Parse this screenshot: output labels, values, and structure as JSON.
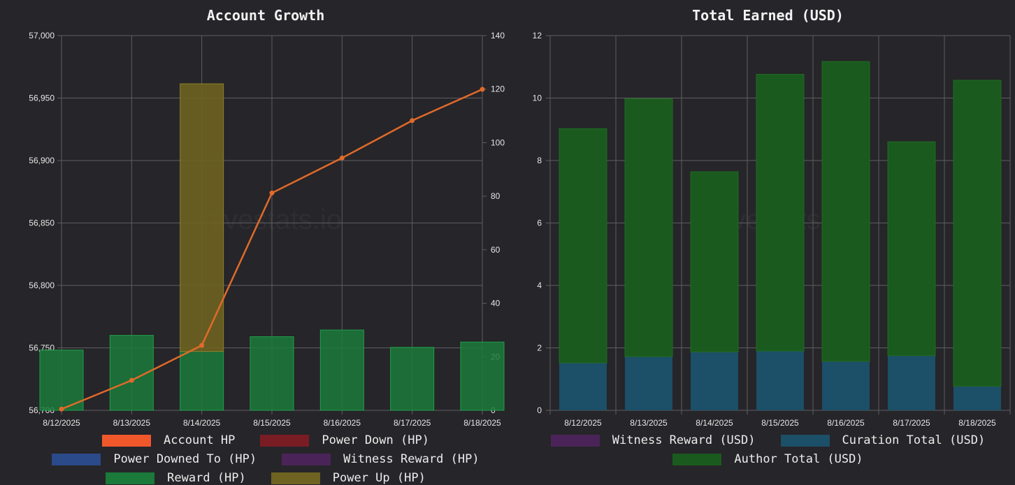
{
  "chart_data": [
    {
      "type": "bar+line",
      "title": "Account Growth",
      "categories": [
        "8/12/2025",
        "8/13/2025",
        "8/14/2025",
        "8/15/2025",
        "8/16/2025",
        "8/17/2025",
        "8/18/2025"
      ],
      "y_left": {
        "min": 56700,
        "max": 57000,
        "ticks": [
          "56,700",
          "56,750",
          "56,800",
          "56,850",
          "56,900",
          "56,950",
          "57,000"
        ]
      },
      "y_right": {
        "min": 0,
        "max": 140,
        "ticks": [
          "0",
          "20",
          "40",
          "60",
          "80",
          "100",
          "120",
          "140"
        ]
      },
      "series": [
        {
          "name": "Account HP",
          "type": "line",
          "axis": "left",
          "color": "#e06a2a",
          "values": [
            56701,
            56724,
            56752,
            56874,
            56902,
            56932,
            56957
          ]
        },
        {
          "name": "Power Down (HP)",
          "type": "bar",
          "axis": "right",
          "color": "#7a1c24",
          "values": [
            0,
            0,
            0,
            0,
            0,
            0,
            0
          ]
        },
        {
          "name": "Power Downed To (HP)",
          "type": "bar",
          "axis": "right",
          "color": "#2a4a8a",
          "values": [
            0,
            0,
            0,
            0,
            0,
            0,
            0
          ]
        },
        {
          "name": "Witness Reward (HP)",
          "type": "bar",
          "axis": "right",
          "color": "#4a2458",
          "values": [
            0,
            0,
            0,
            0,
            0,
            0,
            0
          ]
        },
        {
          "name": "Reward (HP)",
          "type": "bar",
          "axis": "right",
          "color": "#1b7a3a",
          "values": [
            22.5,
            28,
            22,
            27.5,
            30,
            23.5,
            25.5
          ]
        },
        {
          "name": "Power Up (HP)",
          "type": "bar",
          "axis": "right",
          "color": "#6e6320",
          "values": [
            0,
            0,
            100,
            0,
            0,
            0,
            0
          ]
        }
      ],
      "legend_position": "bottom",
      "grid": true
    },
    {
      "type": "stacked-bar",
      "title": "Total Earned (USD)",
      "categories": [
        "8/12/2025",
        "8/13/2025",
        "8/14/2025",
        "8/15/2025",
        "8/16/2025",
        "8/17/2025",
        "8/18/2025"
      ],
      "y": {
        "min": 0,
        "max": 12,
        "ticks": [
          "0",
          "2",
          "4",
          "6",
          "8",
          "10",
          "12"
        ]
      },
      "series": [
        {
          "name": "Witness Reward (USD)",
          "color": "#4a2458",
          "values": [
            0,
            0,
            0,
            0,
            0,
            0,
            0
          ]
        },
        {
          "name": "Curation Total (USD)",
          "color": "#1c4f68",
          "values": [
            1.52,
            1.72,
            1.87,
            1.9,
            1.57,
            1.75,
            0.77
          ]
        },
        {
          "name": "Author Total (USD)",
          "color": "#1b5a1e",
          "values": [
            7.5,
            8.26,
            5.77,
            8.86,
            9.6,
            6.85,
            9.8
          ]
        }
      ],
      "legend_position": "bottom",
      "grid": true
    }
  ]
}
